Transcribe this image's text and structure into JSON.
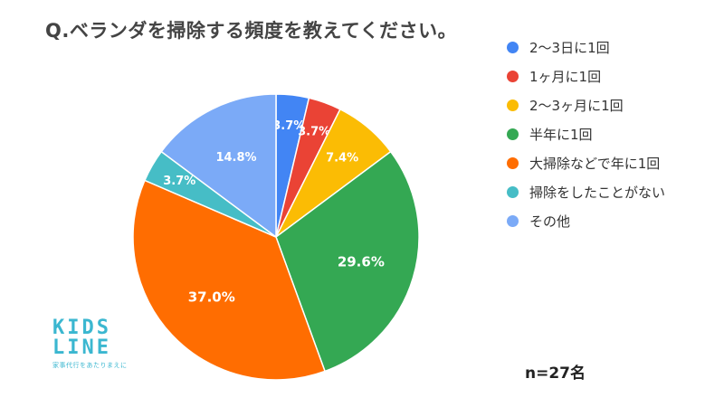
{
  "title": "Q.ベランダを掃除する頻度を教えてください。",
  "chart_data": {
    "type": "pie",
    "title": "Q.ベランダを掃除する頻度を教えてください。",
    "categories": [
      "2〜3日に1回",
      "1ヶ月に1回",
      "2〜3ヶ月に1回",
      "半年に1回",
      "大掃除などで年に1回",
      "掃除をしたことがない",
      "その他"
    ],
    "values": [
      3.7,
      3.7,
      7.4,
      29.6,
      37.0,
      3.7,
      14.8
    ],
    "data_labels": [
      "3.7%",
      "3.7%",
      "7.4%",
      "29.6%",
      "37.0%",
      "3.7%",
      "14.8%"
    ],
    "colors": [
      "#4285f4",
      "#ea4335",
      "#fbbc04",
      "#34a853",
      "#ff6d01",
      "#46bdc6",
      "#7baaf7"
    ],
    "legend_position": "right",
    "start_angle": "top, clockwise"
  },
  "note": "n=27名",
  "logo": {
    "line1": "KIDS",
    "line2": "LINE",
    "tagline": "家事代行をあたりまえに"
  }
}
